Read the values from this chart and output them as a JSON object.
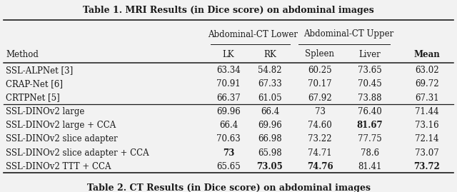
{
  "title_top": "Table 1. MRI Results (in Dice score) on abdominal images",
  "title_bottom": "Table 2. CT Results (in Dice score) on abdominal images",
  "header_group1": "Abdominal-CT Lower",
  "header_group2": "Abdominal-CT Upper",
  "rows": [
    {
      "method": "SSL-ALPNet [3]",
      "lk": "63.34",
      "rk": "54.82",
      "spleen": "60.25",
      "liver": "73.65",
      "mean": "63.02",
      "bold": []
    },
    {
      "method": "CRAP-Net [6]",
      "lk": "70.91",
      "rk": "67.33",
      "spleen": "70.17",
      "liver": "70.45",
      "mean": "69.72",
      "bold": []
    },
    {
      "method": "CRTPNet [5]",
      "lk": "66.37",
      "rk": "61.05",
      "spleen": "67.92",
      "liver": "73.88",
      "mean": "67.31",
      "bold": []
    },
    {
      "method": "SSL-DINOv2 large",
      "lk": "69.96",
      "rk": "66.4",
      "spleen": "73",
      "liver": "76.40",
      "mean": "71.44",
      "bold": []
    },
    {
      "method": "SSL-DINOv2 large + CCA",
      "lk": "66.4",
      "rk": "69.96",
      "spleen": "74.60",
      "liver": "81.67",
      "mean": "73.16",
      "bold": [
        "liver"
      ]
    },
    {
      "method": "SSL-DINOv2 slice adapter",
      "lk": "70.63",
      "rk": "66.98",
      "spleen": "73.22",
      "liver": "77.75",
      "mean": "72.14",
      "bold": []
    },
    {
      "method": "SSL-DINOv2 slice adapter + CCA",
      "lk": "73",
      "rk": "65.98",
      "spleen": "74.71",
      "liver": "78.6",
      "mean": "73.07",
      "bold": [
        "lk"
      ]
    },
    {
      "method": "SSL-DINOv2 TTT + CCA",
      "lk": "65.65",
      "rk": "73.05",
      "spleen": "74.76",
      "liver": "81.41",
      "mean": "73.72",
      "bold": [
        "rk",
        "spleen",
        "mean"
      ]
    }
  ],
  "bg_color": "#f2f2f2",
  "text_color": "#1a1a1a",
  "font_family": "DejaVu Serif",
  "font_size": 8.5,
  "title_font_size": 9.0
}
